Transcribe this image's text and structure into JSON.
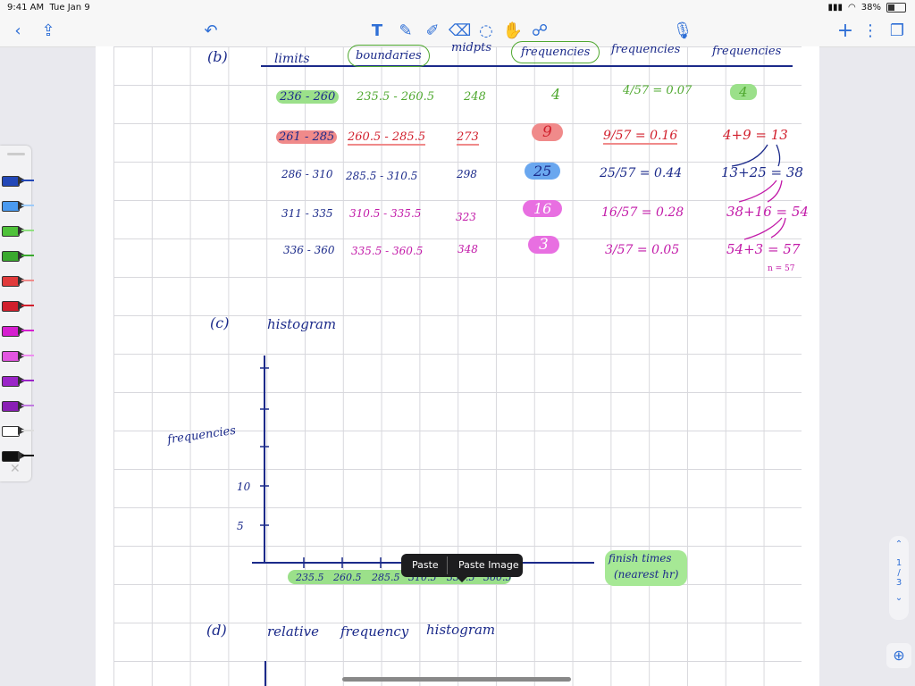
{
  "status_bar": {
    "time": "9:41 AM",
    "date": "Tue Jan 9",
    "battery": "38%"
  },
  "toolbar": {
    "back_icon": "chevron-left-icon",
    "share_icon": "share-icon",
    "undo_icon": "undo-icon",
    "tools": [
      "text-tool-icon",
      "pen-icon",
      "highlighter-icon",
      "eraser-icon",
      "lasso-icon",
      "shape-icon",
      "element-icon"
    ],
    "mic_icon": "microphone-icon",
    "add_label": "+",
    "more_label": "⋮",
    "pages_icon": "pages-icon"
  },
  "notes": {
    "part_b": "(b)",
    "headers": {
      "limits": "limits",
      "boundaries": "boundaries",
      "midpts": "midpts",
      "frequencies": "frequencies",
      "rel_freq": "frequencies",
      "cum_freq": "frequencies"
    },
    "rows": [
      {
        "limits": "236 - 260",
        "boundaries": "235.5 - 260.5",
        "midpt": "248",
        "freq": "4",
        "rel": "4/57 = 0.07",
        "cum": "4"
      },
      {
        "limits": "261 - 285",
        "boundaries": "260.5 - 285.5",
        "midpt": "273",
        "freq": "9",
        "rel": "9/57 = 0.16",
        "cum": "4+9 = 13"
      },
      {
        "limits": "286 - 310",
        "boundaries": "285.5 - 310.5",
        "midpt": "298",
        "freq": "25",
        "rel": "25/57 = 0.44",
        "cum": "13+25 = 38"
      },
      {
        "limits": "311 - 335",
        "boundaries": "310.5 - 335.5",
        "midpt": "323",
        "freq": "16",
        "rel": "16/57 = 0.28",
        "cum": "38+16 = 54"
      },
      {
        "limits": "336 - 360",
        "boundaries": "335.5 - 360.5",
        "midpt": "348",
        "freq": "3",
        "rel": "3/57 = 0.05",
        "cum": "54+3 = 57"
      }
    ],
    "n_label": "n = 57",
    "part_c": "(c)",
    "histogram_title": "histogram",
    "y_label": "frequencies",
    "y_ticks": [
      "10",
      "5"
    ],
    "x_ticks": [
      "235.5",
      "260.5",
      "285.5",
      "310.5",
      "335.5",
      "360.5"
    ],
    "x_label_1": "finish times",
    "x_label_2": "(nearest hr)",
    "part_d": "(d)",
    "d_title_1": "relative",
    "d_title_2": "frequency",
    "d_title_3": "histogram"
  },
  "popup": {
    "paste": "Paste",
    "paste_image": "Paste Image"
  },
  "pager": {
    "current": "1",
    "sep": "/",
    "total": "3"
  }
}
